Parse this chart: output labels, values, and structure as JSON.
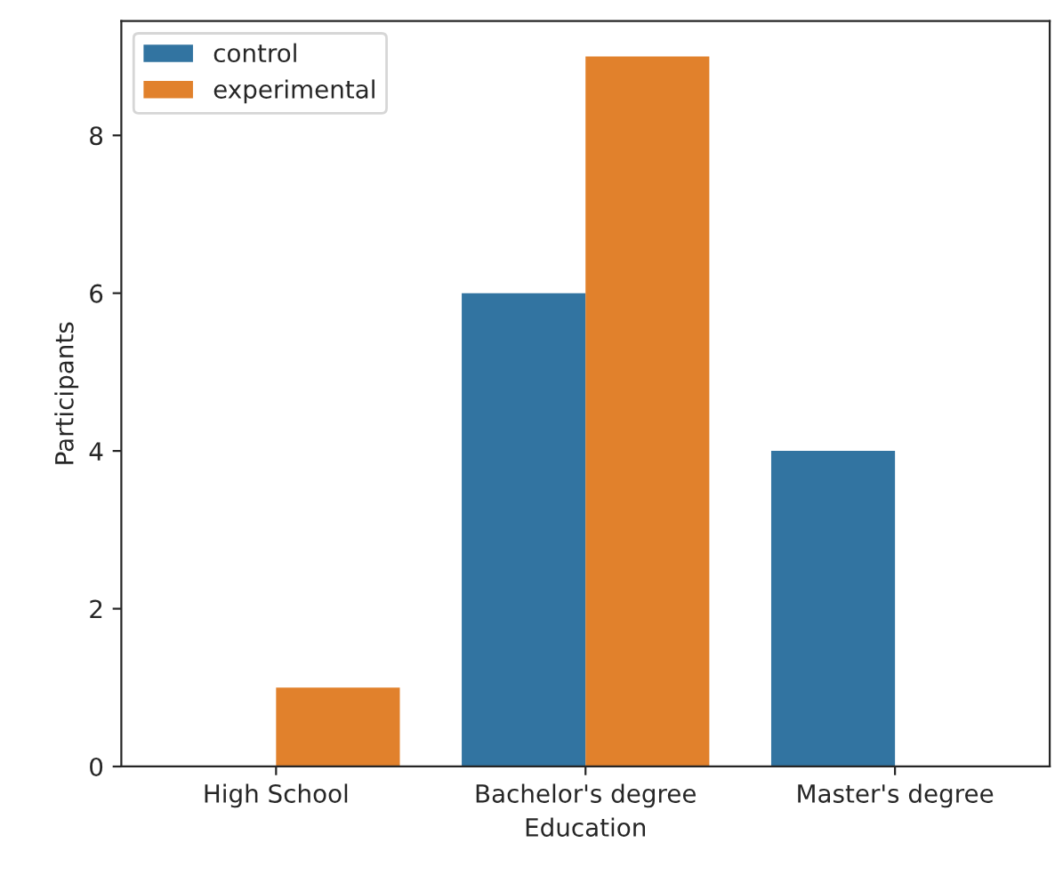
{
  "chart_data": {
    "type": "bar",
    "xlabel": "Education",
    "ylabel": "Participants",
    "categories": [
      "High School",
      "Bachelor's degree",
      "Master's degree"
    ],
    "series": [
      {
        "name": "control",
        "color": "#3274a1",
        "values": [
          0,
          6,
          4
        ]
      },
      {
        "name": "experimental",
        "color": "#e1812c",
        "values": [
          1,
          9,
          0
        ]
      }
    ],
    "ylim": [
      0,
      9.45
    ],
    "yticks": [
      0,
      2,
      4,
      6,
      8
    ],
    "grid": false,
    "legend": "top left"
  }
}
